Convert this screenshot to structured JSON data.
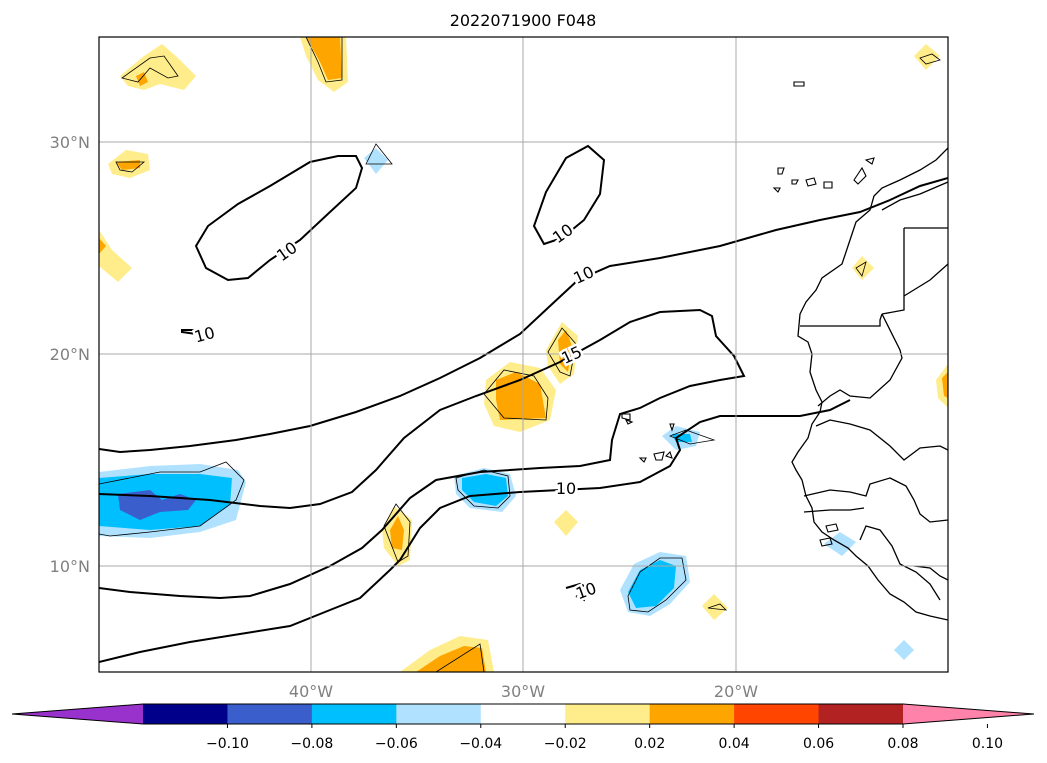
{
  "title": "2022071900 F048",
  "map": {
    "lat_labels": [
      "30°N",
      "20°N",
      "10°N"
    ],
    "lon_labels": [
      "40°W",
      "30°W",
      "20°W"
    ],
    "grid_lines": true,
    "extent": {
      "lon": [
        -50,
        -10
      ],
      "lat": [
        5,
        35
      ]
    }
  },
  "contours": {
    "labels": [
      "10",
      "10",
      "10",
      "10",
      "15",
      "10",
      "10"
    ],
    "levels": [
      10,
      15
    ]
  },
  "colorbar": {
    "ticks": [
      "−0.10",
      "−0.08",
      "−0.06",
      "−0.04",
      "−0.02",
      "0.02",
      "0.04",
      "0.06",
      "0.08",
      "0.10"
    ],
    "colors": [
      "#9932cc",
      "#00008b",
      "#3a5fcd",
      "#00bfff",
      "#b0e2ff",
      "#ffffff",
      "#ffec8b",
      "#ffa500",
      "#ff4500",
      "#b22222",
      "#ff82ab"
    ],
    "extend": "both"
  }
}
